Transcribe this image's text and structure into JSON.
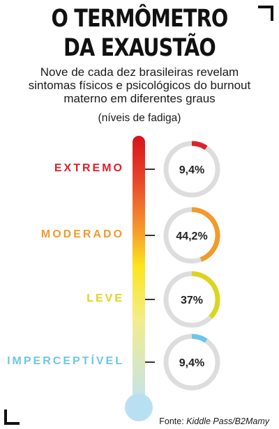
{
  "header": {
    "title_line1": "O TERMÔMETRO",
    "title_line2": "DA EXAUSTÃO",
    "subtitle_line1": "Nove de cada dez brasileiras revelam",
    "subtitle_line2": "sintomas físicos e psicológicos do burnout",
    "subtitle_line3": "materno em diferentes graus",
    "units": "(níveis de fadiga)"
  },
  "chart_data": {
    "type": "donut",
    "categories": [
      "EXTREMO",
      "MODERADO",
      "LEVE",
      "IMPERCEPTÍVEL"
    ],
    "values": [
      9.4,
      44.2,
      37,
      9.4
    ],
    "value_labels": [
      "9,4%",
      "44,2%",
      "37%",
      "9,4%"
    ],
    "colors": [
      "#e0202a",
      "#f39a2c",
      "#dcd51e",
      "#6ec6ea"
    ],
    "track_color": "#dddddd"
  },
  "footer": {
    "source_prefix": "Fonte: ",
    "source_name": "Kiddle Pass/B2Mamy"
  }
}
